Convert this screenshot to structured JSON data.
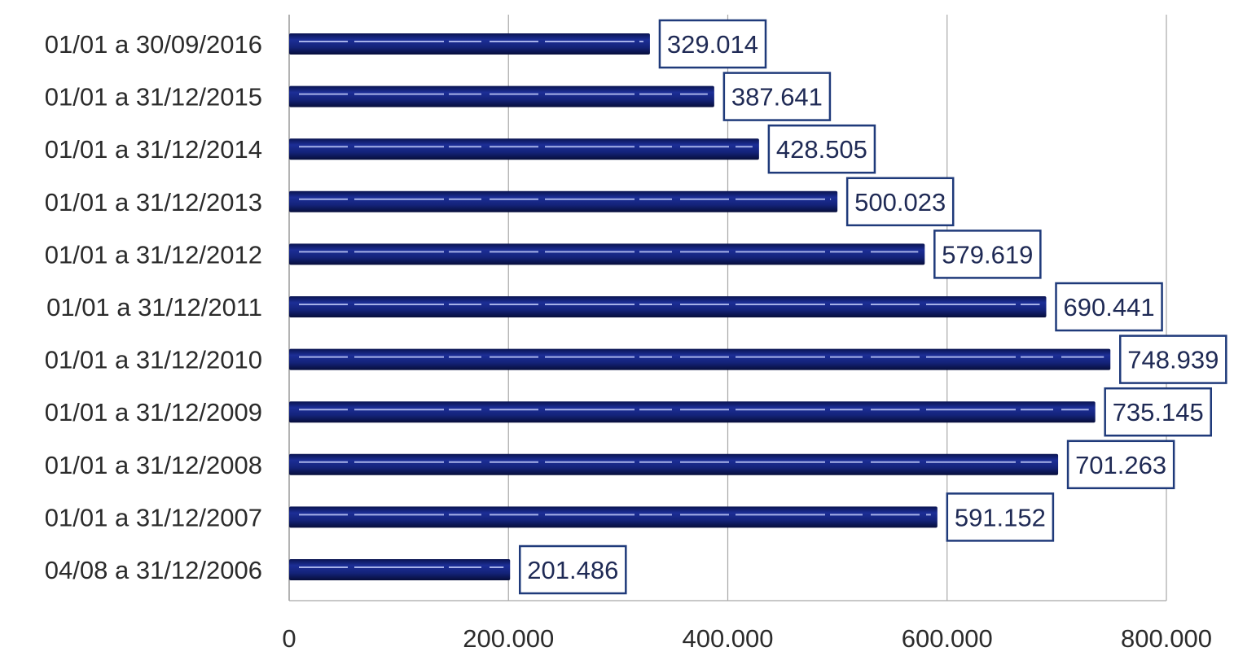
{
  "chart_data": {
    "type": "bar",
    "orientation": "horizontal",
    "categories": [
      "01/01 a 30/09/2016",
      "01/01 a 31/12/2015",
      "01/01 a 31/12/2014",
      "01/01 a 31/12/2013",
      "01/01 a 31/12/2012",
      "01/01 a 31/12/2011",
      "01/01 a 31/12/2010",
      "01/01 a 31/12/2009",
      "01/01 a 31/12/2008",
      "01/01 a 31/12/2007",
      "04/08 a 31/12/2006"
    ],
    "values": [
      329014,
      387641,
      428505,
      500023,
      579619,
      690441,
      748939,
      735145,
      701263,
      591152,
      201486
    ],
    "data_labels": [
      "329.014",
      "387.641",
      "428.505",
      "500.023",
      "579.619",
      "690.441",
      "748.939",
      "735.145",
      "701.263",
      "591.152",
      "201.486"
    ],
    "xlim": [
      0,
      800000
    ],
    "x_ticks": [
      0,
      200000,
      400000,
      600000,
      800000
    ],
    "x_tick_labels": [
      "0",
      "200.000",
      "400.000",
      "600.000",
      "800.000"
    ],
    "title": "",
    "xlabel": "",
    "ylabel": "",
    "grid": "vertical",
    "legend": "none",
    "colors": {
      "bar": "#14237a",
      "bar_dark": "#0a1450",
      "label_border": "#1f3a7a",
      "gridline": "#a8a8a8"
    }
  }
}
